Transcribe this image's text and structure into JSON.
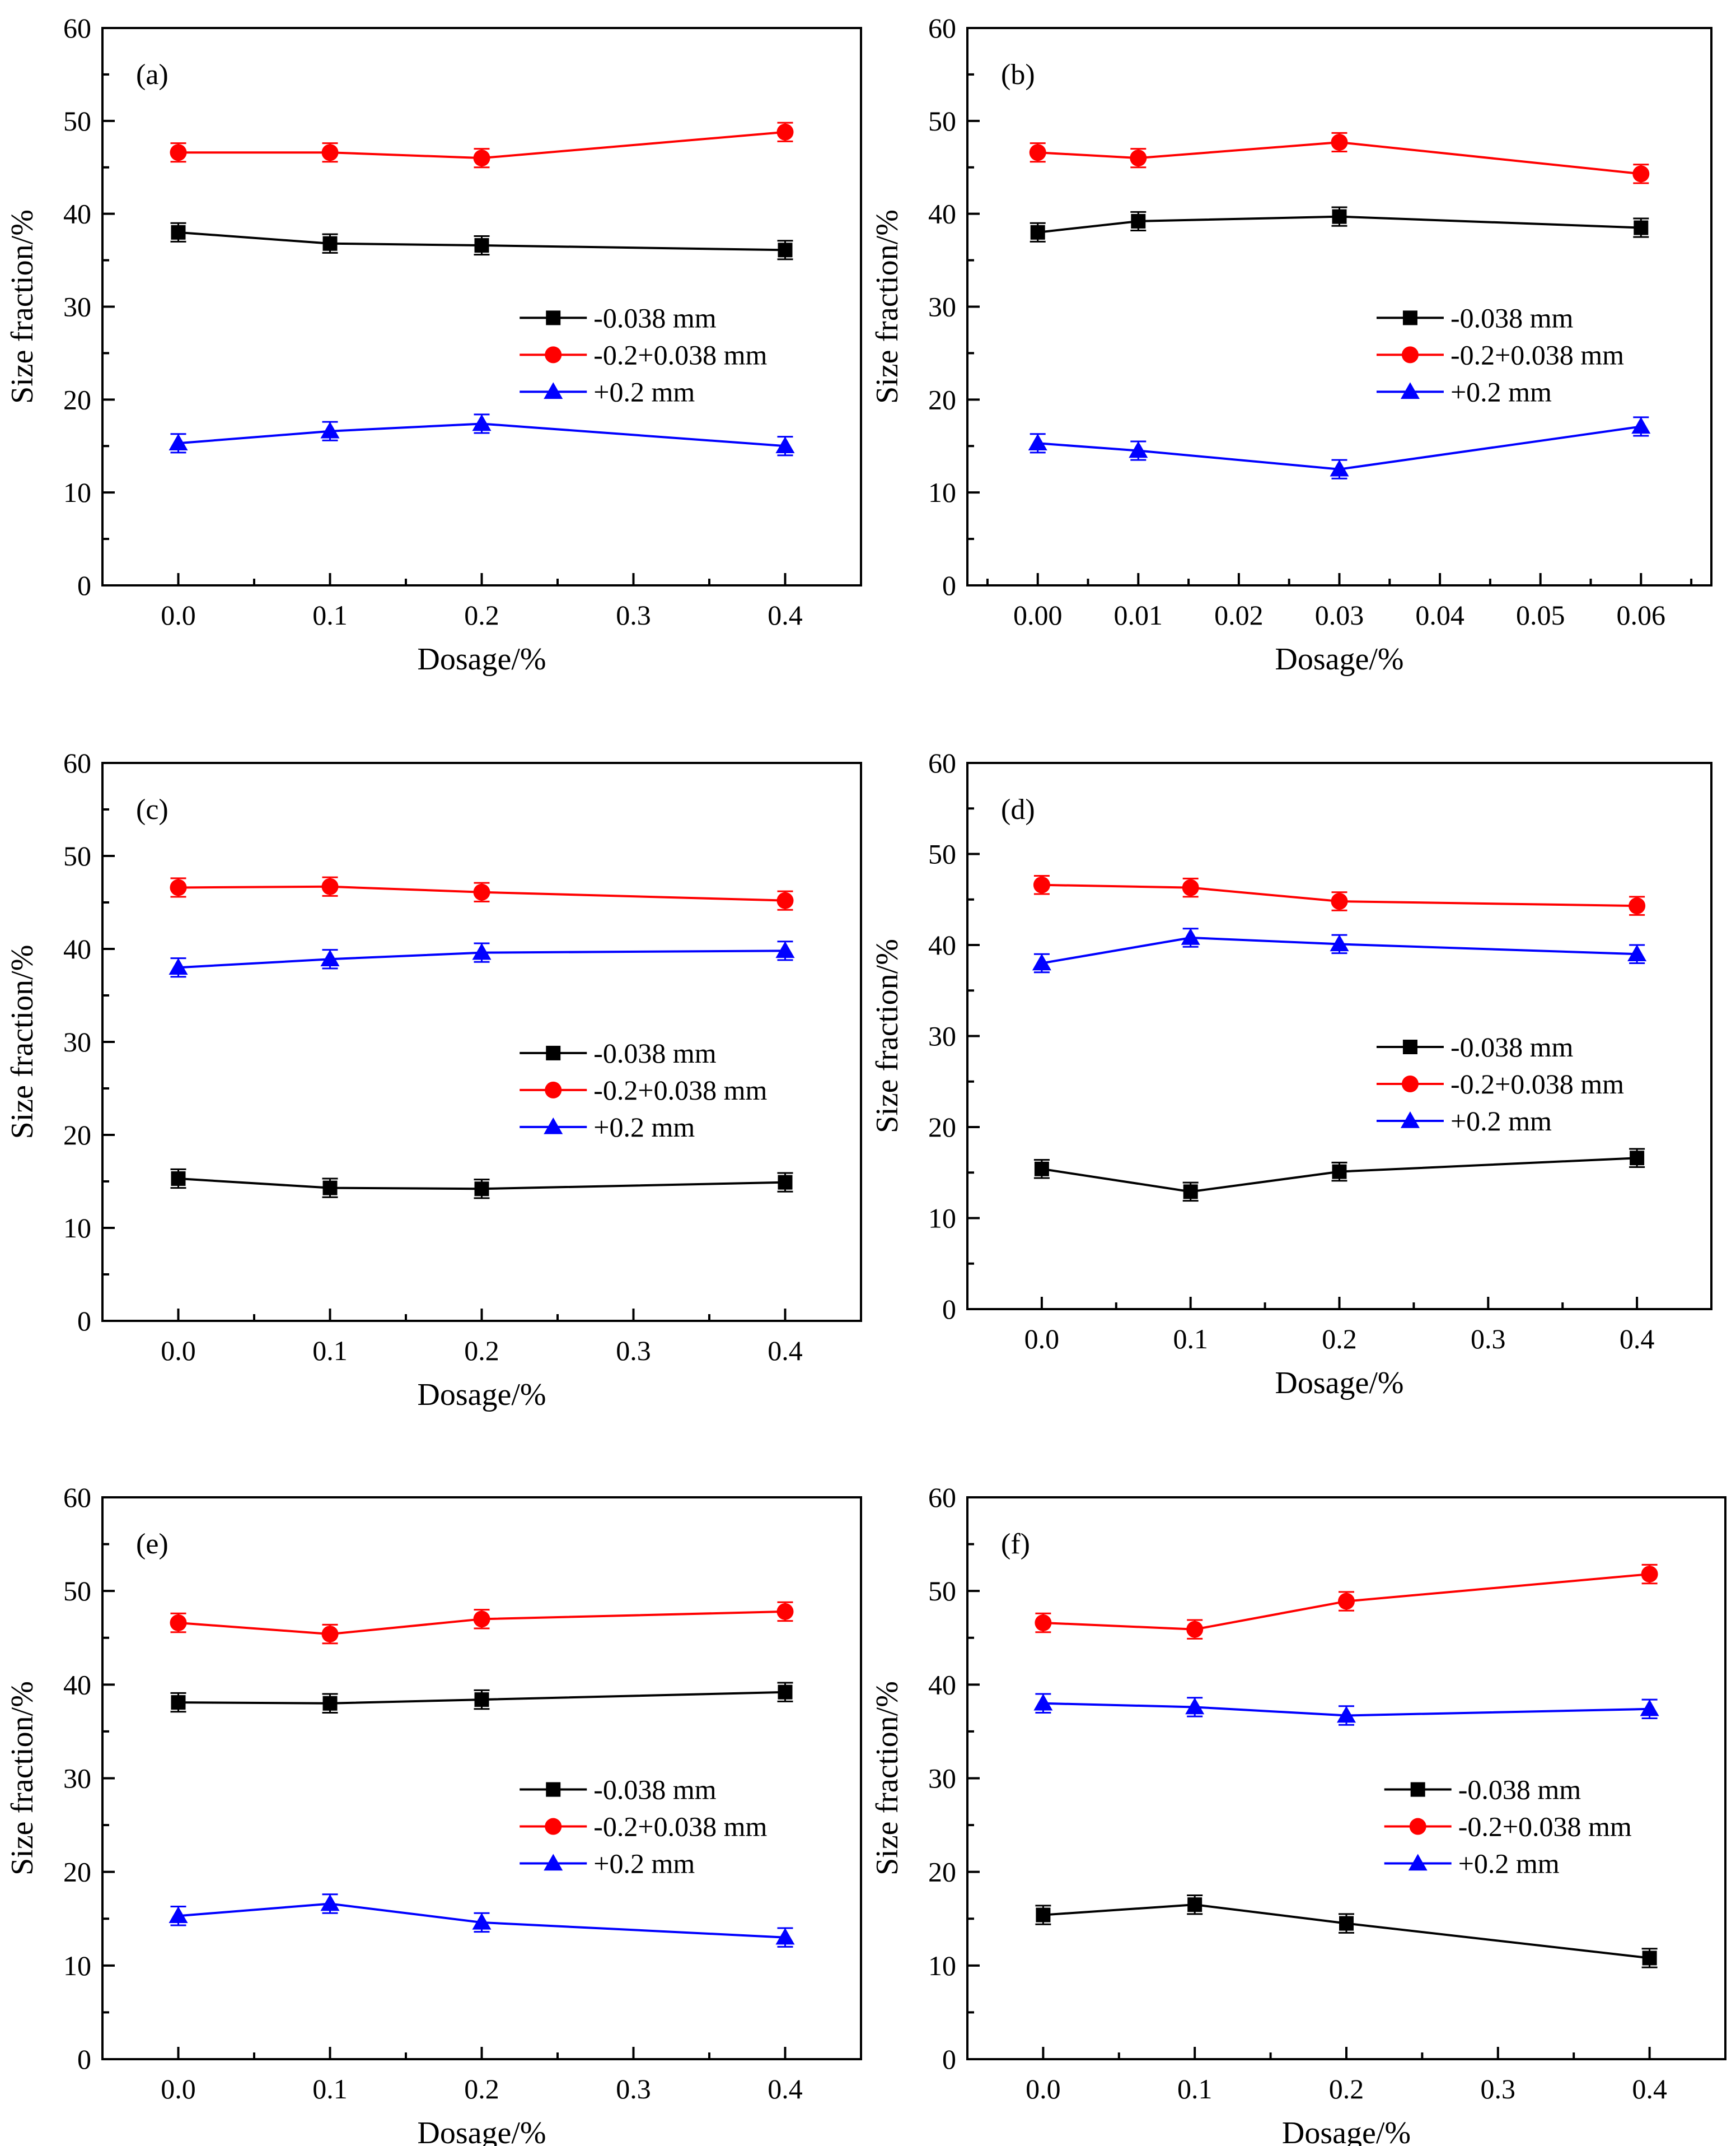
{
  "figure": {
    "colors": {
      "fine": "#000000",
      "medium": "#ff0000",
      "coarse": "#0000ff",
      "axis": "#000000",
      "background": "#ffffff"
    },
    "markers": {
      "-0.038 mm": "square",
      "-0.2+0.038 mm": "circle",
      "+0.2 mm": "triangle"
    }
  },
  "chart_data": [
    {
      "id": "a",
      "panel_label": "(a)",
      "type": "line",
      "xlabel": "Dosage/%",
      "ylabel": "Size fraction/%",
      "xlim": [
        -0.05,
        0.45
      ],
      "ylim": [
        0,
        60
      ],
      "xticks": [
        0.0,
        0.1,
        0.2,
        0.3,
        0.4
      ],
      "xtick_labels": [
        "0.0",
        "0.1",
        "0.2",
        "0.3",
        "0.4"
      ],
      "yticks": [
        0,
        10,
        20,
        30,
        40,
        50,
        60
      ],
      "ytick_labels": [
        "0",
        "10",
        "20",
        "30",
        "40",
        "50",
        "60"
      ],
      "x": [
        0.0,
        0.1,
        0.2,
        0.4
      ],
      "legend_position": "center-right",
      "series": [
        {
          "name": "-0.038 mm",
          "values": [
            38.0,
            36.8,
            36.6,
            36.1
          ],
          "error": [
            1.0,
            1.0,
            1.0,
            1.0
          ]
        },
        {
          "name": "-0.2+0.038 mm",
          "values": [
            46.6,
            46.6,
            46.0,
            48.8
          ],
          "error": [
            1.0,
            1.0,
            1.0,
            1.0
          ]
        },
        {
          "name": "+0.2 mm",
          "values": [
            15.3,
            16.6,
            17.4,
            15.0
          ],
          "error": [
            1.0,
            1.0,
            1.0,
            1.0
          ]
        }
      ]
    },
    {
      "id": "b",
      "panel_label": "(b)",
      "type": "line",
      "xlabel": "Dosage/%",
      "ylabel": "Size fraction/%",
      "xlim": [
        -0.007,
        0.067
      ],
      "ylim": [
        0,
        60
      ],
      "xticks": [
        0.0,
        0.01,
        0.02,
        0.03,
        0.04,
        0.05,
        0.06
      ],
      "xtick_labels": [
        "0.00",
        "0.01",
        "0.02",
        "0.03",
        "0.04",
        "0.05",
        "0.06"
      ],
      "yticks": [
        0,
        10,
        20,
        30,
        40,
        50,
        60
      ],
      "ytick_labels": [
        "0",
        "10",
        "20",
        "30",
        "40",
        "50",
        "60"
      ],
      "x": [
        0.0,
        0.01,
        0.03,
        0.06
      ],
      "legend_position": "center-right",
      "series": [
        {
          "name": "-0.038 mm",
          "values": [
            38.0,
            39.2,
            39.7,
            38.5
          ],
          "error": [
            1.0,
            1.0,
            1.0,
            1.0
          ]
        },
        {
          "name": "-0.2+0.038 mm",
          "values": [
            46.6,
            46.0,
            47.7,
            44.3
          ],
          "error": [
            1.0,
            1.0,
            1.0,
            1.0
          ]
        },
        {
          "name": "+0.2 mm",
          "values": [
            15.3,
            14.5,
            12.5,
            17.1
          ],
          "error": [
            1.0,
            1.0,
            1.0,
            1.0
          ]
        }
      ]
    },
    {
      "id": "c",
      "panel_label": "(c)",
      "type": "line",
      "xlabel": "Dosage/%",
      "ylabel": "Size fraction/%",
      "xlim": [
        -0.05,
        0.45
      ],
      "ylim": [
        0,
        60
      ],
      "xticks": [
        0.0,
        0.1,
        0.2,
        0.3,
        0.4
      ],
      "xtick_labels": [
        "0.0",
        "0.1",
        "0.2",
        "0.3",
        "0.4"
      ],
      "yticks": [
        0,
        10,
        20,
        30,
        40,
        50,
        60
      ],
      "ytick_labels": [
        "0",
        "10",
        "20",
        "30",
        "40",
        "50",
        "60"
      ],
      "x": [
        0.0,
        0.1,
        0.2,
        0.4
      ],
      "legend_position": "center-right",
      "series": [
        {
          "name": "-0.038 mm",
          "values": [
            15.3,
            14.3,
            14.2,
            14.9
          ],
          "error": [
            1.0,
            1.0,
            1.0,
            1.0
          ]
        },
        {
          "name": "-0.2+0.038 mm",
          "values": [
            46.6,
            46.7,
            46.1,
            45.2
          ],
          "error": [
            1.0,
            1.0,
            1.0,
            1.0
          ]
        },
        {
          "name": "+0.2 mm",
          "values": [
            38.0,
            38.9,
            39.6,
            39.8
          ],
          "error": [
            1.0,
            1.0,
            1.0,
            1.0
          ]
        }
      ]
    },
    {
      "id": "d",
      "panel_label": "(d)",
      "type": "line",
      "xlabel": "Dosage/%",
      "ylabel": "Size fraction/%",
      "xlim": [
        -0.05,
        0.45
      ],
      "ylim": [
        0,
        60
      ],
      "xticks": [
        0.0,
        0.1,
        0.2,
        0.3,
        0.4
      ],
      "xtick_labels": [
        "0.0",
        "0.1",
        "0.2",
        "0.3",
        "0.4"
      ],
      "yticks": [
        0,
        10,
        20,
        30,
        40,
        50,
        60
      ],
      "ytick_labels": [
        "0",
        "10",
        "20",
        "30",
        "40",
        "50",
        "60"
      ],
      "x": [
        0.0,
        0.1,
        0.2,
        0.4
      ],
      "legend_position": "center-right",
      "series": [
        {
          "name": "-0.038 mm",
          "values": [
            15.4,
            12.9,
            15.1,
            16.6
          ],
          "error": [
            1.0,
            1.0,
            1.0,
            1.0
          ]
        },
        {
          "name": "-0.2+0.038 mm",
          "values": [
            46.6,
            46.3,
            44.8,
            44.3
          ],
          "error": [
            1.0,
            1.0,
            1.0,
            1.0
          ]
        },
        {
          "name": "+0.2 mm",
          "values": [
            38.0,
            40.8,
            40.1,
            39.0
          ],
          "error": [
            1.0,
            1.0,
            1.0,
            1.0
          ]
        }
      ]
    },
    {
      "id": "e",
      "panel_label": "(e)",
      "type": "line",
      "xlabel": "Dosage/%",
      "ylabel": "Size fraction/%",
      "xlim": [
        -0.05,
        0.45
      ],
      "ylim": [
        0,
        60
      ],
      "xticks": [
        0.0,
        0.1,
        0.2,
        0.3,
        0.4
      ],
      "xtick_labels": [
        "0.0",
        "0.1",
        "0.2",
        "0.3",
        "0.4"
      ],
      "yticks": [
        0,
        10,
        20,
        30,
        40,
        50,
        60
      ],
      "ytick_labels": [
        "0",
        "10",
        "20",
        "30",
        "40",
        "50",
        "60"
      ],
      "x": [
        0.0,
        0.1,
        0.2,
        0.4
      ],
      "legend_position": "center-right",
      "series": [
        {
          "name": "-0.038 mm",
          "values": [
            38.1,
            38.0,
            38.4,
            39.2
          ],
          "error": [
            1.0,
            1.0,
            1.0,
            1.0
          ]
        },
        {
          "name": "-0.2+0.038 mm",
          "values": [
            46.6,
            45.4,
            47.0,
            47.8
          ],
          "error": [
            1.0,
            1.0,
            1.0,
            1.0
          ]
        },
        {
          "name": "+0.2 mm",
          "values": [
            15.3,
            16.6,
            14.6,
            13.0
          ],
          "error": [
            1.0,
            1.0,
            1.0,
            1.0
          ]
        }
      ]
    },
    {
      "id": "f",
      "panel_label": "(f)",
      "type": "line",
      "xlabel": "Dosage/%",
      "ylabel": "Size fraction/%",
      "xlim": [
        -0.05,
        0.45
      ],
      "ylim": [
        0,
        60
      ],
      "xticks": [
        0.0,
        0.1,
        0.2,
        0.3,
        0.4
      ],
      "xtick_labels": [
        "0.0",
        "0.1",
        "0.2",
        "0.3",
        "0.4"
      ],
      "yticks": [
        0,
        10,
        20,
        30,
        40,
        50,
        60
      ],
      "ytick_labels": [
        "0",
        "10",
        "20",
        "30",
        "40",
        "50",
        "60"
      ],
      "x": [
        0.0,
        0.1,
        0.2,
        0.4
      ],
      "legend_position": "center-right",
      "series": [
        {
          "name": "-0.038 mm",
          "values": [
            15.4,
            16.5,
            14.5,
            10.8
          ],
          "error": [
            1.0,
            1.0,
            1.0,
            1.0
          ]
        },
        {
          "name": "-0.2+0.038 mm",
          "values": [
            46.6,
            45.9,
            48.9,
            51.8
          ],
          "error": [
            1.0,
            1.0,
            1.0,
            1.0
          ]
        },
        {
          "name": "+0.2 mm",
          "values": [
            38.0,
            37.6,
            36.7,
            37.4
          ],
          "error": [
            1.0,
            1.0,
            1.0,
            1.0
          ]
        }
      ]
    }
  ]
}
